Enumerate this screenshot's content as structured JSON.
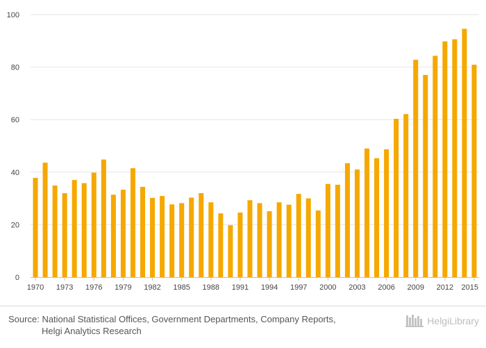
{
  "chart_data": {
    "type": "bar",
    "title": "",
    "xlabel": "",
    "ylabel": "",
    "ylim": [
      0,
      100
    ],
    "yticks": [
      0,
      20,
      40,
      60,
      80,
      100
    ],
    "color": "#F5A800",
    "grid": true,
    "categories": [
      "1970",
      "1971",
      "1972",
      "1973",
      "1974",
      "1975",
      "1976",
      "1977",
      "1978",
      "1979",
      "1980",
      "1981",
      "1982",
      "1983",
      "1984",
      "1985",
      "1986",
      "1987",
      "1988",
      "1989",
      "1990",
      "1991",
      "1992",
      "1993",
      "1994",
      "1995",
      "1996",
      "1997",
      "1998",
      "1999",
      "2000",
      "2001",
      "2002",
      "2003",
      "2004",
      "2005",
      "2006",
      "2007",
      "2008",
      "2009",
      "2010",
      "2011",
      "2012",
      "2013",
      "2014",
      "2015"
    ],
    "xtick_labels": [
      "1970",
      "1973",
      "1976",
      "1979",
      "1982",
      "1985",
      "1988",
      "1991",
      "1994",
      "1997",
      "2000",
      "2003",
      "2006",
      "2009",
      "2012",
      "2015"
    ],
    "values": [
      37.8,
      43.6,
      34.9,
      32.0,
      37.0,
      35.8,
      39.8,
      44.8,
      31.4,
      33.3,
      41.5,
      34.4,
      30.2,
      30.9,
      27.7,
      28.2,
      30.3,
      32.0,
      28.5,
      24.3,
      19.8,
      24.6,
      29.3,
      28.2,
      25.1,
      28.5,
      27.6,
      31.7,
      30.0,
      25.4,
      35.5,
      35.2,
      43.4,
      41.0,
      49.0,
      45.3,
      48.7,
      60.3,
      62.1,
      82.8,
      77.0,
      84.3,
      89.8,
      90.6,
      94.6,
      80.9
    ]
  },
  "footer": {
    "source_label": "Source:",
    "source_line1": "National Statistical Offices, Government Departments, Company Reports,",
    "source_line2": "Helgi Analytics Research",
    "brand_name": "HelgiLibrary",
    "brand_icon": "library-icon"
  }
}
